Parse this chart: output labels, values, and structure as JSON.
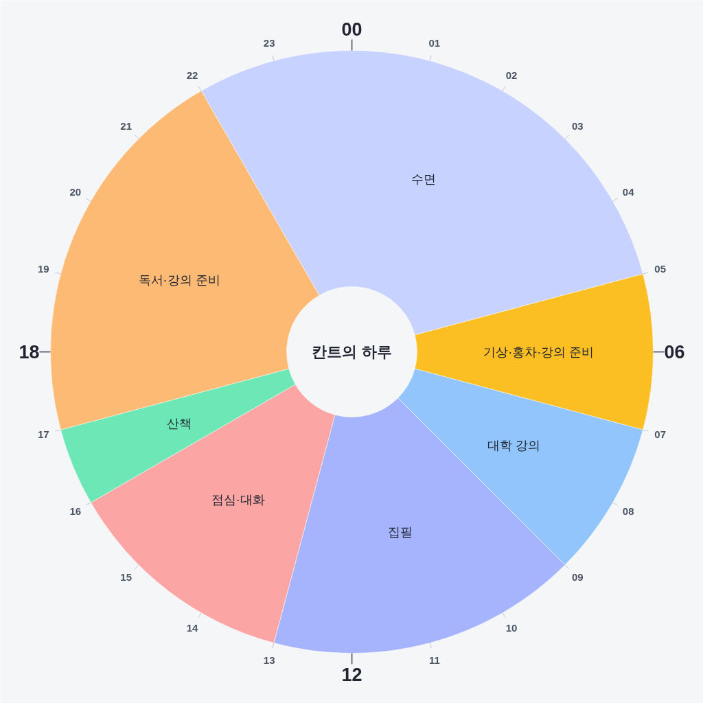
{
  "chart_data": {
    "type": "donut",
    "title": "칸트의 하루",
    "categories": [
      "수면",
      "기상·홍차·강의 준비",
      "대학 강의",
      "집필",
      "점심·대화",
      "산책",
      "독서·강의 준비"
    ],
    "values": [
      29.17,
      8.33,
      8.33,
      16.67,
      12.5,
      4.17,
      20.83
    ],
    "colors": [
      "#c7d2fe",
      "#fbbf24",
      "#93c5fd",
      "#a5b4fc",
      "#fca5a5",
      "#6ee7b7",
      "#fdba74"
    ],
    "annotations": [
      "00",
      "01",
      "02",
      "03",
      "04",
      "05",
      "06",
      "07",
      "08",
      "09",
      "10",
      "11",
      "12",
      "13",
      "14",
      "15",
      "16",
      "17",
      "18",
      "19",
      "20",
      "21",
      "22",
      "23"
    ]
  }
}
